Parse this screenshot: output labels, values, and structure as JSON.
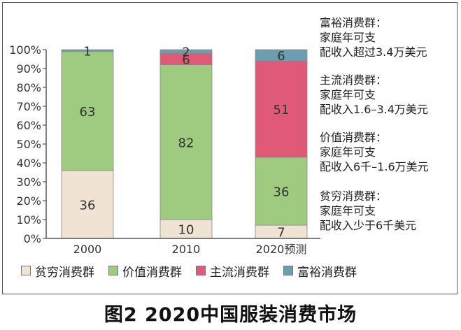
{
  "chart_data": {
    "type": "bar",
    "stacked": true,
    "categories": [
      "2000",
      "2010",
      "2020预测"
    ],
    "series": [
      {
        "name": "贫穷消费群",
        "values": [
          36,
          10,
          7
        ],
        "color": "#f0e3d4"
      },
      {
        "name": "价值消费群",
        "values": [
          63,
          82,
          36
        ],
        "color": "#9ecb7f"
      },
      {
        "name": "主流消费群",
        "values": [
          null,
          6,
          51
        ],
        "color": "#e05a78"
      },
      {
        "name": "富裕消费群",
        "values": [
          1,
          2,
          6
        ],
        "color": "#6b9fb0"
      }
    ],
    "y_ticks": [
      "0%",
      "10%",
      "20%",
      "30%",
      "40%",
      "50%",
      "60%",
      "70%",
      "80%",
      "90%",
      "100%"
    ],
    "ylim": [
      0,
      100
    ],
    "grid": false,
    "legend_position": "bottom",
    "title": "图2 2020中国服装消费市场"
  },
  "category_notes": [
    {
      "name": "富裕消费群：",
      "line1": "家庭年可支",
      "line2": "配收入超过3.4万美元"
    },
    {
      "name": "主流消费群：",
      "line1": "家庭年可支",
      "line2": "配收入1.6–3.4万美元"
    },
    {
      "name": "价值消费群：",
      "line1": "家庭年可支",
      "line2": "配收入6千–1.6万美元"
    },
    {
      "name": "贫穷消费群：",
      "line1": "家庭年可支",
      "line2": "配收入少于6千美元"
    }
  ]
}
